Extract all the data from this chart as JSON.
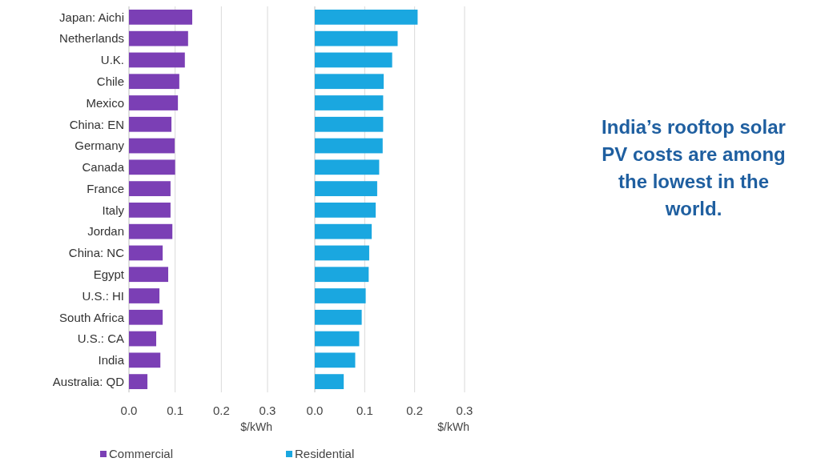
{
  "chart_data": [
    {
      "type": "bar",
      "orientation": "horizontal",
      "categories": [
        "Japan: Aichi",
        "Netherlands",
        "U.K.",
        "Chile",
        "Mexico",
        "China: EN",
        "Germany",
        "Canada",
        "France",
        "Italy",
        "Jordan",
        "China: NC",
        "Egypt",
        "U.S.: HI",
        "South Africa",
        "U.S.: CA",
        "India",
        "Australia: QD"
      ],
      "series": [
        {
          "name": "Commercial",
          "color": "#7b3fb5",
          "values": [
            0.137,
            0.128,
            0.121,
            0.109,
            0.106,
            0.092,
            0.099,
            0.1,
            0.09,
            0.09,
            0.094,
            0.073,
            0.085,
            0.066,
            0.073,
            0.059,
            0.068,
            0.04
          ]
        }
      ],
      "xlim": [
        0,
        0.3
      ],
      "xticks": [
        {
          "value": 0,
          "label": "0.0"
        },
        0.1,
        0.2,
        0.3
      ],
      "xlabel": "$/kWh",
      "grid": "x",
      "legend": "bottom"
    },
    {
      "type": "bar",
      "orientation": "horizontal",
      "categories": [
        null,
        null,
        null,
        null,
        null,
        null,
        null,
        null,
        null,
        null,
        null,
        null,
        null,
        null,
        null,
        null,
        null,
        null
      ],
      "series": [
        {
          "name": "Residential",
          "color": "#1aa7e0",
          "values": [
            0.206,
            0.166,
            0.155,
            0.138,
            0.137,
            0.137,
            0.136,
            0.129,
            0.125,
            0.122,
            0.114,
            0.109,
            0.108,
            0.102,
            0.094,
            0.089,
            0.081,
            0.058
          ]
        }
      ],
      "xlim": [
        0,
        0.3
      ],
      "xticks": [
        {
          "value": 0,
          "label": "0.0"
        },
        0.1,
        0.2,
        0.3
      ],
      "xlabel": "$/kWh",
      "grid": "x",
      "legend": "bottom"
    },
    {
      "type": "other",
      "title": "India’s rooftop solar PV costs are among the lowest in the world."
    }
  ]
}
